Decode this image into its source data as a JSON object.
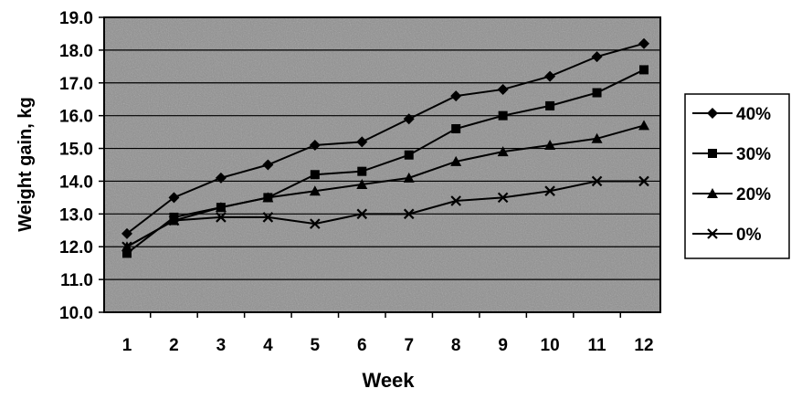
{
  "chart_data": {
    "type": "line",
    "title": "",
    "xlabel": "Week",
    "ylabel": "Weight gain, kg",
    "categories": [
      "1",
      "2",
      "3",
      "4",
      "5",
      "6",
      "7",
      "8",
      "9",
      "10",
      "11",
      "12"
    ],
    "ylim": [
      10.0,
      19.0
    ],
    "yticks": [
      "10.0",
      "11.0",
      "12.0",
      "13.0",
      "14.0",
      "15.0",
      "16.0",
      "17.0",
      "18.0",
      "19.0"
    ],
    "grid": true,
    "legend_position": "right",
    "series": [
      {
        "name": "40%",
        "marker": "diamond",
        "values": [
          12.4,
          13.5,
          14.1,
          14.5,
          15.1,
          15.2,
          15.9,
          16.6,
          16.8,
          17.2,
          17.8,
          18.2
        ]
      },
      {
        "name": "30%",
        "marker": "square",
        "values": [
          11.8,
          12.9,
          13.2,
          13.5,
          14.2,
          14.3,
          14.8,
          15.6,
          16.0,
          16.3,
          16.7,
          17.4
        ]
      },
      {
        "name": "20%",
        "marker": "triangle",
        "values": [
          12.0,
          12.8,
          13.2,
          13.5,
          13.7,
          13.9,
          14.1,
          14.6,
          14.9,
          15.1,
          15.3,
          15.7
        ]
      },
      {
        "name": "0%",
        "marker": "x",
        "values": [
          12.0,
          12.8,
          12.9,
          12.9,
          12.7,
          13.0,
          13.0,
          13.4,
          13.5,
          13.7,
          14.0,
          14.0
        ]
      }
    ],
    "colors": {
      "line": "#000000",
      "plot_bg": "#8f8f8f",
      "grid": "#000000"
    }
  }
}
